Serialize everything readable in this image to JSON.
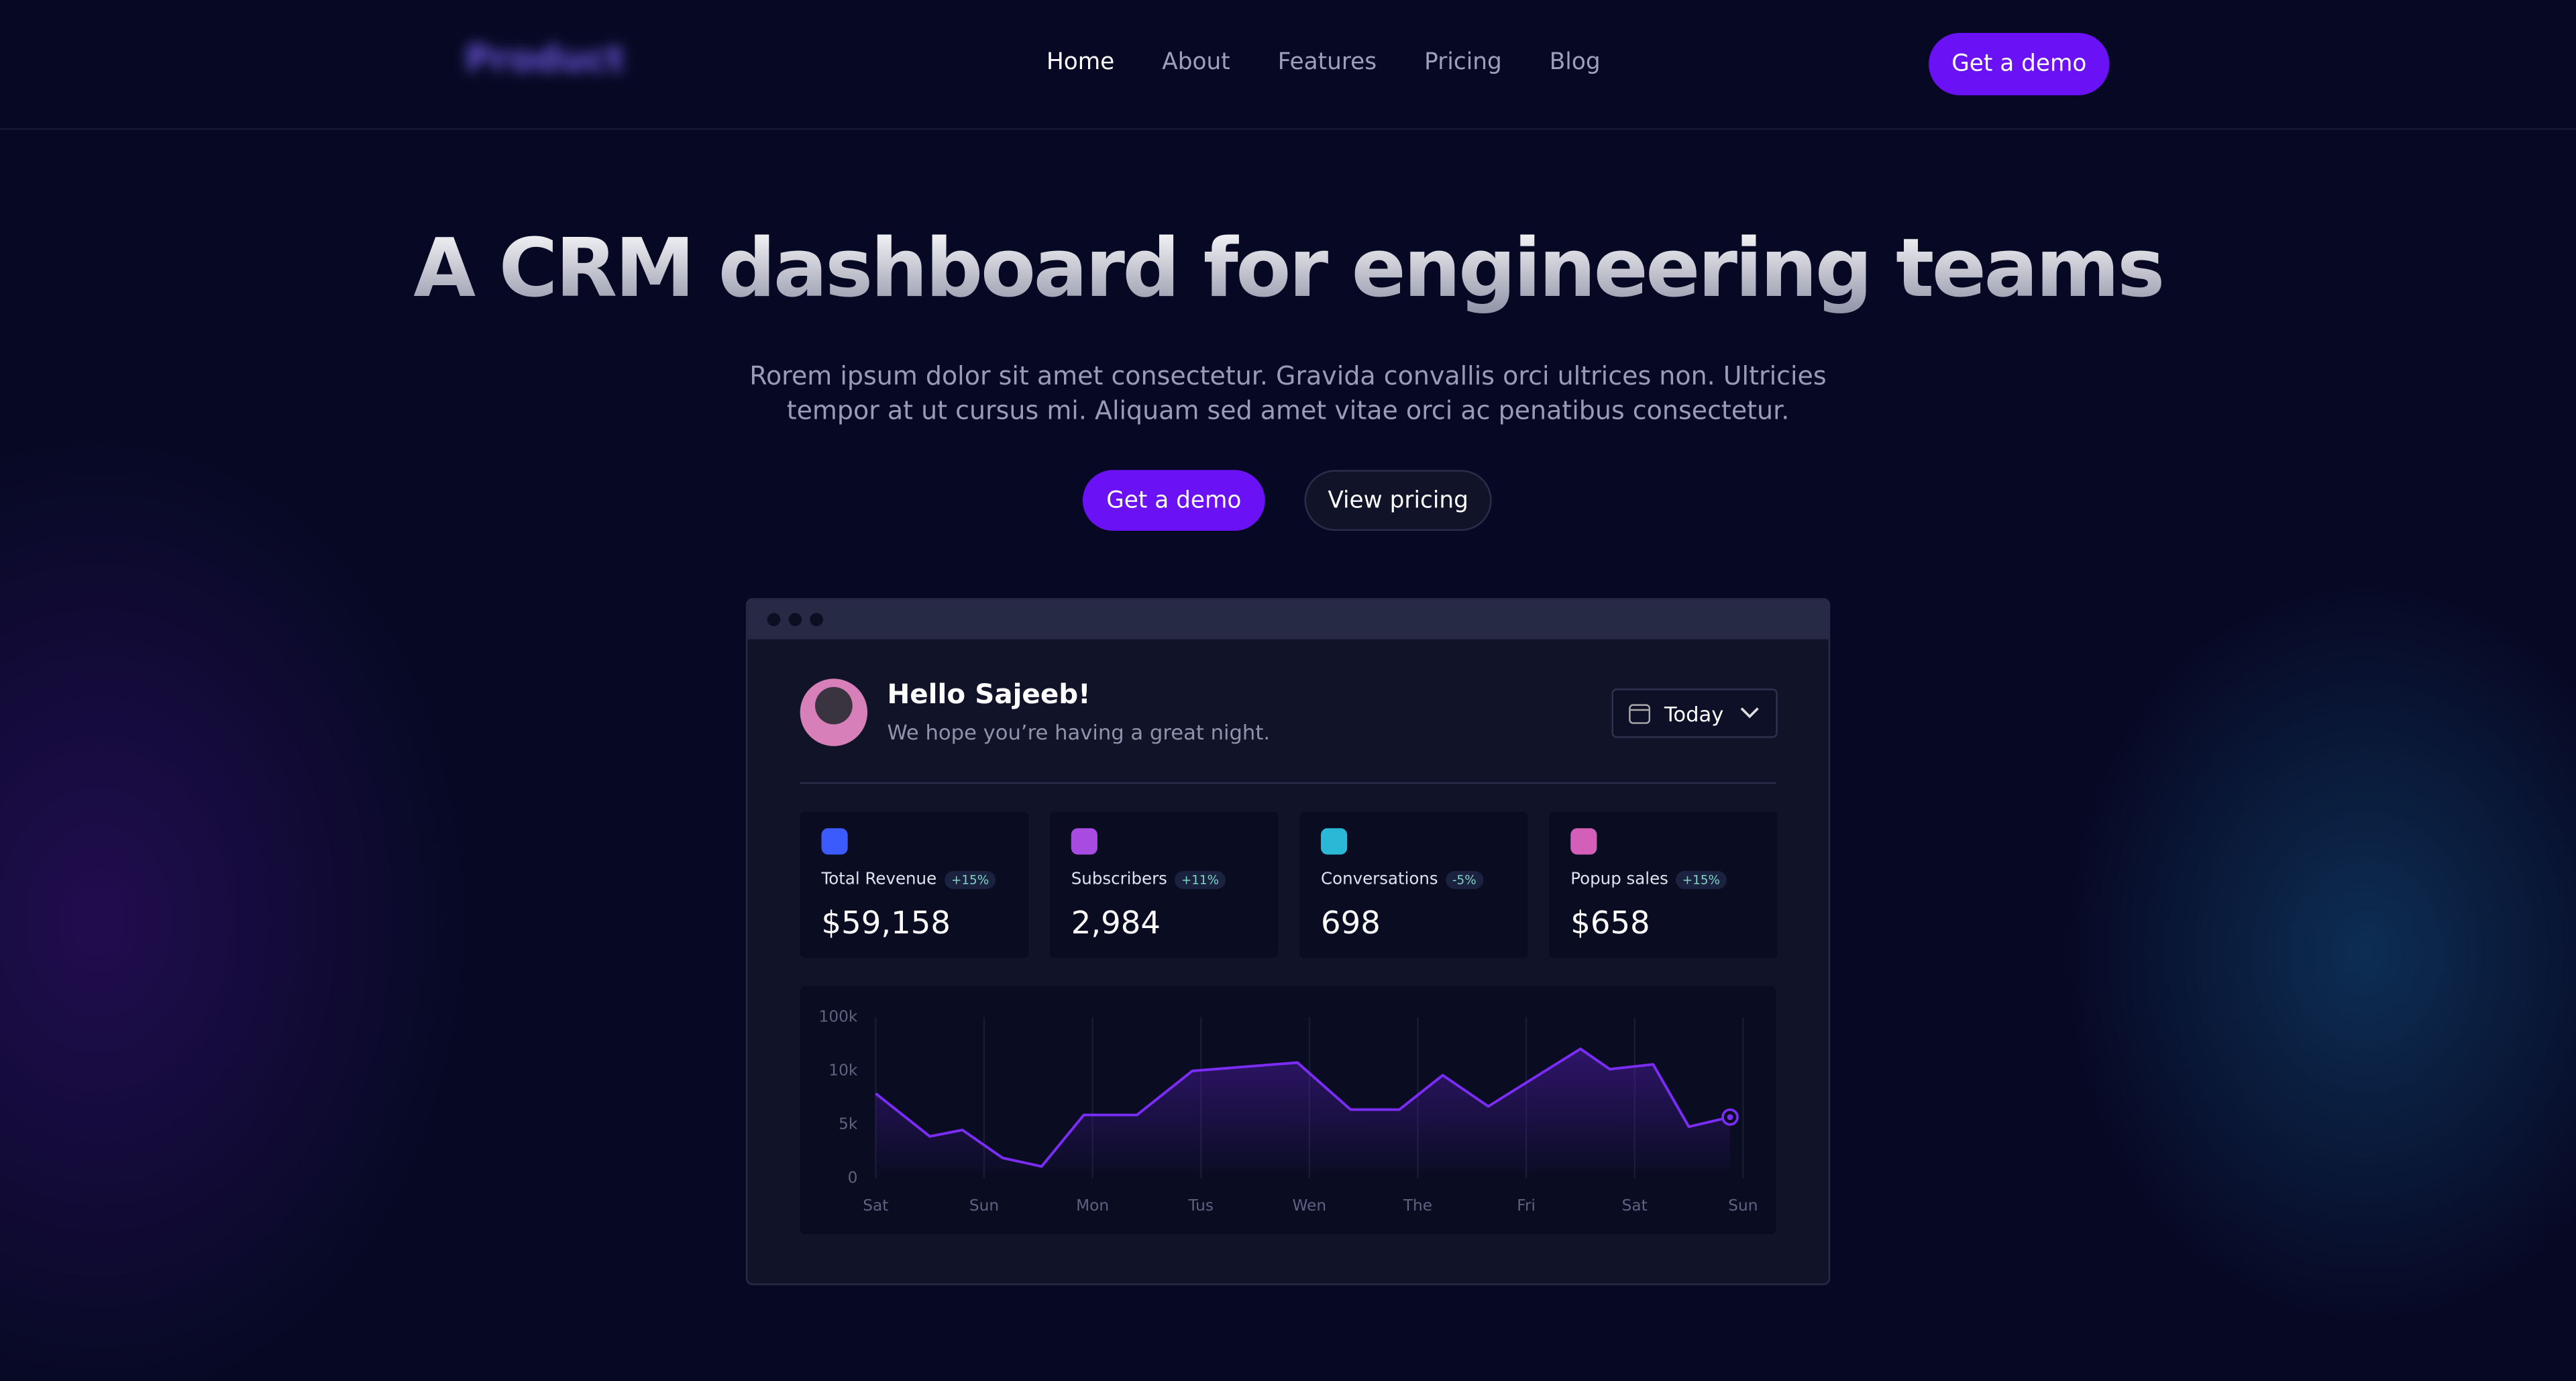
{
  "nav": {
    "logo": "Product",
    "links": [
      "Home",
      "About",
      "Features",
      "Pricing",
      "Blog"
    ],
    "cta": "Get a demo"
  },
  "hero": {
    "title": "A CRM dashboard for engineering teams",
    "text": "Rorem ipsum dolor sit amet consectetur. Gravida convallis orci ultrices non. Ultricies tempor at ut cursus mi. Aliquam sed amet vitae orci ac penatibus consectetur.",
    "primary": "Get a demo",
    "secondary": "View pricing"
  },
  "dashboard": {
    "greeting": "Hello Sajeeb!",
    "subtitle": "We hope you’re having a great night.",
    "range": "Today",
    "stats": [
      {
        "label": "Total Revenue",
        "change": "+15%",
        "value": "$59,158",
        "color": "#3b5bfd"
      },
      {
        "label": "Subscribers",
        "change": "+11%",
        "value": "2,984",
        "color": "#a84be0"
      },
      {
        "label": "Conversations",
        "change": "-5%",
        "value": "698",
        "color": "#2bb8d6"
      },
      {
        "label": "Popup sales",
        "change": "+15%",
        "value": "$658",
        "color": "#d35fb8"
      }
    ],
    "chart": {
      "type": "line",
      "x": [
        0,
        0.5,
        0.8,
        1.17,
        1.53,
        1.92,
        2.41,
        2.92,
        3.89,
        4.38,
        4.83,
        5.23,
        5.65,
        6.5,
        6.77,
        7.17,
        7.5,
        7.88
      ],
      "series": [
        {
          "color": "#7b2cf5",
          "values": [
            7900,
            3900,
            4500,
            1900,
            1100,
            5900,
            5900,
            10000,
            24000,
            6400,
            6400,
            9600,
            6700,
            47000,
            13000,
            21000,
            4800,
            5700
          ]
        }
      ],
      "xlim": [
        0,
        8
      ],
      "xticks": [
        {
          "value": 0,
          "label": "Sat"
        },
        {
          "value": 1,
          "label": "Sun"
        },
        {
          "value": 2,
          "label": "Mon"
        },
        {
          "value": 3,
          "label": "Tus"
        },
        {
          "value": 4,
          "label": "Wen"
        },
        {
          "value": 5,
          "label": "The"
        },
        {
          "value": 6,
          "label": "Fri"
        },
        {
          "value": 7,
          "label": "Sat"
        },
        {
          "value": 8,
          "label": "Sun"
        }
      ],
      "ylim": [
        0,
        100000
      ],
      "yticks": [
        0,
        {
          "value": 5000,
          "label": "5k"
        },
        {
          "value": 10000,
          "label": "10k"
        },
        {
          "value": 100000,
          "label": "100k"
        }
      ],
      "grid": true
    }
  }
}
